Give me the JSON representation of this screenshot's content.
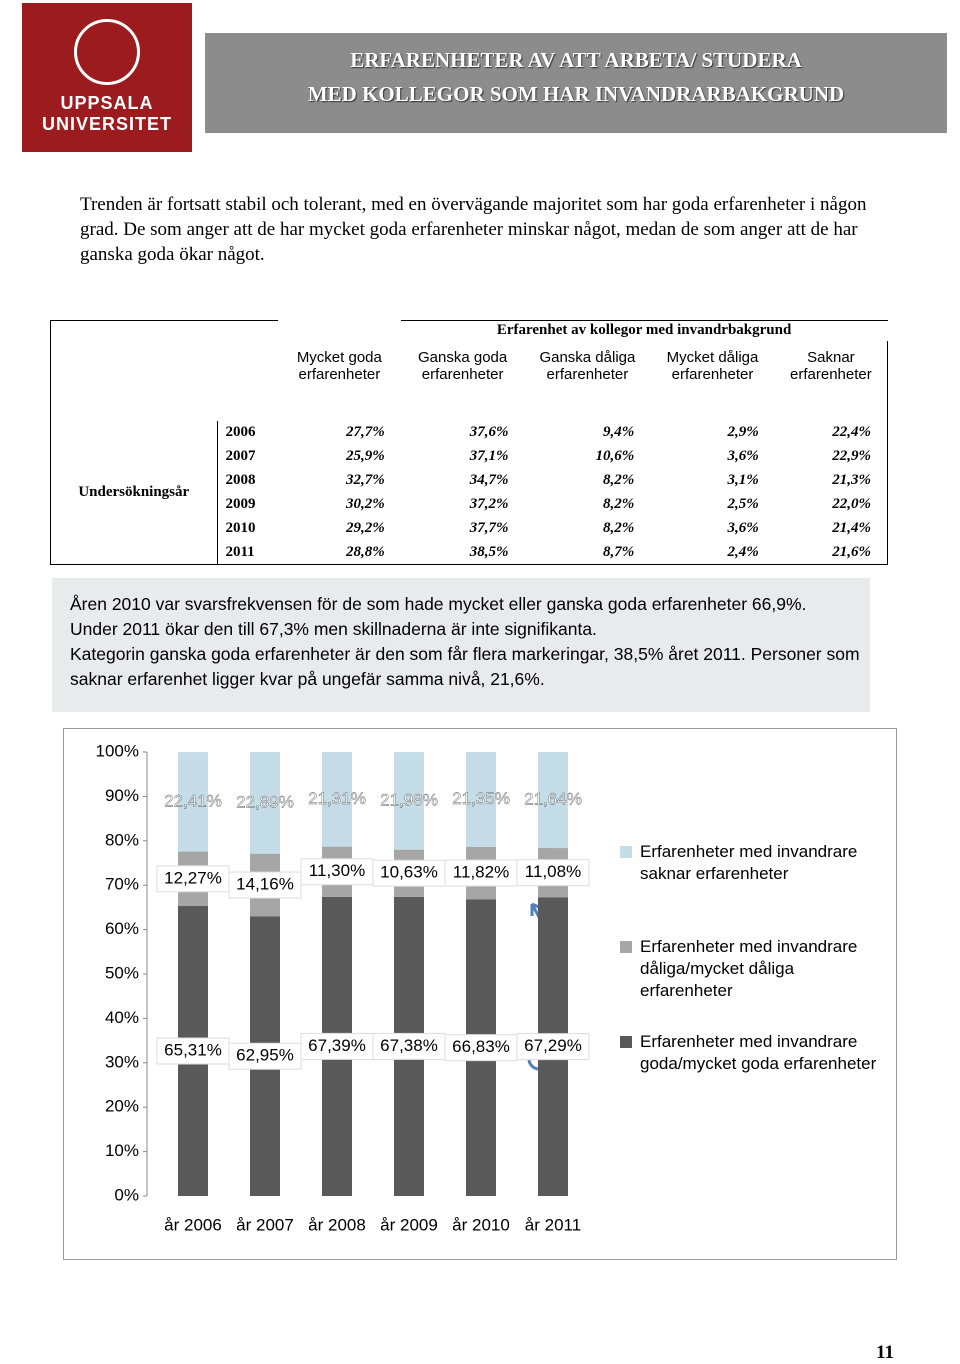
{
  "header": {
    "logo": [
      "UPPSALA",
      "UNIVERSITET"
    ],
    "title": [
      "ERFARENHETER AV ATT ARBETA/ STUDERA",
      "MED KOLLEGOR SOM HAR INVANDRARBAKGRUND"
    ]
  },
  "intro": "Trenden är fortsatt stabil och tolerant, med en övervägande majoritet som har goda erfarenheter i någon grad. De som anger att de har mycket goda erfarenheter minskar något, medan de som anger att de har ganska goda ökar något.",
  "table": {
    "group_header": "Erfarenhet av kollegor med invandrbakgrund",
    "columns": [
      "Mycket goda erfarenheter",
      "Ganska goda erfarenheter",
      "Ganska dåliga erfarenheter",
      "Mycket dåliga erfarenheter",
      "Saknar erfarenheter"
    ],
    "row_header": "Undersökningsår",
    "rows": [
      [
        "2006",
        "27,7%",
        "37,6%",
        "9,4%",
        "2,9%",
        "22,4%"
      ],
      [
        "2007",
        "25,9%",
        "37,1%",
        "10,6%",
        "3,6%",
        "22,9%"
      ],
      [
        "2008",
        "32,7%",
        "34,7%",
        "8,2%",
        "3,1%",
        "21,3%"
      ],
      [
        "2009",
        "30,2%",
        "37,2%",
        "8,2%",
        "2,5%",
        "22,0%"
      ],
      [
        "2010",
        "29,2%",
        "37,7%",
        "8,2%",
        "3,6%",
        "21,4%"
      ],
      [
        "2011",
        "28,8%",
        "38,5%",
        "8,7%",
        "2,4%",
        "21,6%"
      ]
    ]
  },
  "note": [
    "Åren 2010 var svarsfrekvensen för de som hade mycket eller ganska goda erfarenheter 66,9%.",
    "Under 2011 ökar den till 67,3% men skillnaderna är inte signifikanta.",
    "Kategorin ganska goda erfarenheter är den som får flera markeringar, 38,5% året 2011. Personer som saknar erfarenhet ligger kvar på ungefär samma nivå, 21,6%."
  ],
  "chart_data": {
    "type": "stacked_bar",
    "categories": [
      "år 2006",
      "år 2007",
      "år 2008",
      "år 2009",
      "år 2010",
      "år 2011"
    ],
    "series": [
      {
        "name": "Erfarenheter med invandrare goda/mycket goda erfarenheter",
        "color": "#595959",
        "values": [
          65.31,
          62.95,
          67.39,
          67.38,
          66.83,
          67.29
        ],
        "value_labels": [
          "65,31%",
          "62,95%",
          "67,39%",
          "67,38%",
          "66,83%",
          "67,29%"
        ]
      },
      {
        "name": "Erfarenheter med invandrare dåliga/mycket dåliga erfarenheter",
        "color": "#a6a6a6",
        "values": [
          12.27,
          14.16,
          11.3,
          10.63,
          11.82,
          11.08
        ],
        "value_labels": [
          "12,27%",
          "14,16%",
          "11,30%",
          "10,63%",
          "11,82%",
          "11,08%"
        ]
      },
      {
        "name": "Erfarenheter med invandrare saknar erfarenheter",
        "color": "#c5dde8",
        "values": [
          22.41,
          22.89,
          21.31,
          21.98,
          21.35,
          21.64
        ],
        "value_labels": [
          "22,41%",
          "22,89%",
          "21,31%",
          "21,98%",
          "21,35%",
          "21,64%"
        ]
      }
    ],
    "ylim": [
      0,
      100
    ],
    "yticks": [
      {
        "value": 0,
        "label": "0%"
      },
      {
        "value": 10,
        "label": "10%"
      },
      {
        "value": 20,
        "label": "20%"
      },
      {
        "value": 30,
        "label": "30%"
      },
      {
        "value": 40,
        "label": "40%"
      },
      {
        "value": 50,
        "label": "50%"
      },
      {
        "value": 60,
        "label": "60%"
      },
      {
        "value": 70,
        "label": "70%"
      },
      {
        "value": 80,
        "label": "80%"
      },
      {
        "value": 90,
        "label": "90%"
      },
      {
        "value": 100,
        "label": "100%"
      }
    ]
  },
  "page_number": "11"
}
